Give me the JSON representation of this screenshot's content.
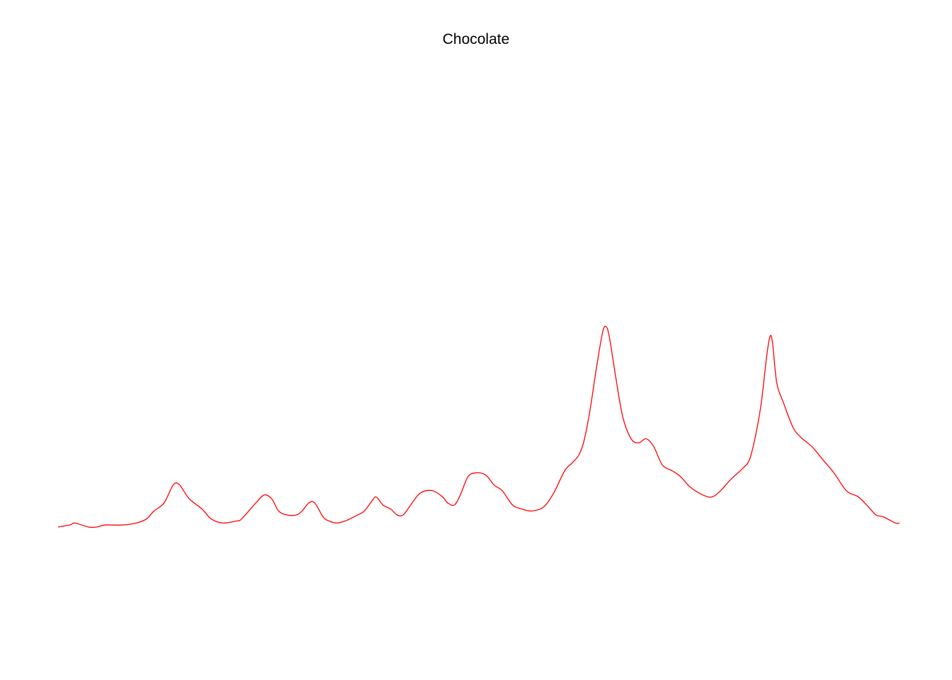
{
  "chart_data": {
    "type": "line",
    "title": "Chocolate",
    "xlabel": "",
    "ylabel": "",
    "axes_shown": false,
    "grid": false,
    "xlim": [
      0,
      1
    ],
    "ylim": [
      0,
      1
    ],
    "series": [
      {
        "color": "#FF0000",
        "points": [
          [
            0.0,
            0.0
          ],
          [
            0.014,
            0.01
          ],
          [
            0.02,
            0.02
          ],
          [
            0.036,
            0.0
          ],
          [
            0.046,
            0.0
          ],
          [
            0.056,
            0.01
          ],
          [
            0.076,
            0.01
          ],
          [
            0.093,
            0.02
          ],
          [
            0.105,
            0.04
          ],
          [
            0.114,
            0.08
          ],
          [
            0.126,
            0.12
          ],
          [
            0.14,
            0.22
          ],
          [
            0.156,
            0.14
          ],
          [
            0.171,
            0.09
          ],
          [
            0.182,
            0.04
          ],
          [
            0.196,
            0.02
          ],
          [
            0.212,
            0.03
          ],
          [
            0.218,
            0.04
          ],
          [
            0.235,
            0.12
          ],
          [
            0.245,
            0.16
          ],
          [
            0.254,
            0.14
          ],
          [
            0.262,
            0.08
          ],
          [
            0.272,
            0.06
          ],
          [
            0.283,
            0.06
          ],
          [
            0.29,
            0.08
          ],
          [
            0.298,
            0.12
          ],
          [
            0.305,
            0.12
          ],
          [
            0.315,
            0.05
          ],
          [
            0.322,
            0.03
          ],
          [
            0.331,
            0.02
          ],
          [
            0.341,
            0.03
          ],
          [
            0.356,
            0.06
          ],
          [
            0.364,
            0.08
          ],
          [
            0.373,
            0.13
          ],
          [
            0.378,
            0.15
          ],
          [
            0.386,
            0.11
          ],
          [
            0.395,
            0.09
          ],
          [
            0.403,
            0.06
          ],
          [
            0.41,
            0.06
          ],
          [
            0.419,
            0.11
          ],
          [
            0.428,
            0.16
          ],
          [
            0.436,
            0.18
          ],
          [
            0.446,
            0.18
          ],
          [
            0.457,
            0.15
          ],
          [
            0.463,
            0.12
          ],
          [
            0.471,
            0.11
          ],
          [
            0.478,
            0.16
          ],
          [
            0.487,
            0.25
          ],
          [
            0.496,
            0.27
          ],
          [
            0.508,
            0.26
          ],
          [
            0.518,
            0.21
          ],
          [
            0.528,
            0.18
          ],
          [
            0.54,
            0.11
          ],
          [
            0.551,
            0.09
          ],
          [
            0.563,
            0.08
          ],
          [
            0.577,
            0.1
          ],
          [
            0.589,
            0.17
          ],
          [
            0.602,
            0.28
          ],
          [
            0.611,
            0.32
          ],
          [
            0.619,
            0.36
          ],
          [
            0.625,
            0.43
          ],
          [
            0.632,
            0.58
          ],
          [
            0.64,
            0.8
          ],
          [
            0.647,
            0.97
          ],
          [
            0.651,
            1.0
          ],
          [
            0.655,
            0.95
          ],
          [
            0.663,
            0.74
          ],
          [
            0.671,
            0.55
          ],
          [
            0.681,
            0.44
          ],
          [
            0.69,
            0.42
          ],
          [
            0.699,
            0.44
          ],
          [
            0.708,
            0.4
          ],
          [
            0.718,
            0.31
          ],
          [
            0.73,
            0.28
          ],
          [
            0.74,
            0.25
          ],
          [
            0.751,
            0.2
          ],
          [
            0.766,
            0.16
          ],
          [
            0.777,
            0.15
          ],
          [
            0.787,
            0.18
          ],
          [
            0.8,
            0.24
          ],
          [
            0.813,
            0.29
          ],
          [
            0.822,
            0.34
          ],
          [
            0.83,
            0.48
          ],
          [
            0.836,
            0.63
          ],
          [
            0.842,
            0.85
          ],
          [
            0.846,
            0.95
          ],
          [
            0.849,
            0.92
          ],
          [
            0.854,
            0.72
          ],
          [
            0.862,
            0.62
          ],
          [
            0.873,
            0.5
          ],
          [
            0.882,
            0.45
          ],
          [
            0.896,
            0.4
          ],
          [
            0.908,
            0.34
          ],
          [
            0.922,
            0.27
          ],
          [
            0.937,
            0.18
          ],
          [
            0.951,
            0.15
          ],
          [
            0.963,
            0.1
          ],
          [
            0.972,
            0.06
          ],
          [
            0.981,
            0.05
          ],
          [
            0.995,
            0.02
          ],
          [
            1.0,
            0.02
          ]
        ]
      }
    ]
  }
}
